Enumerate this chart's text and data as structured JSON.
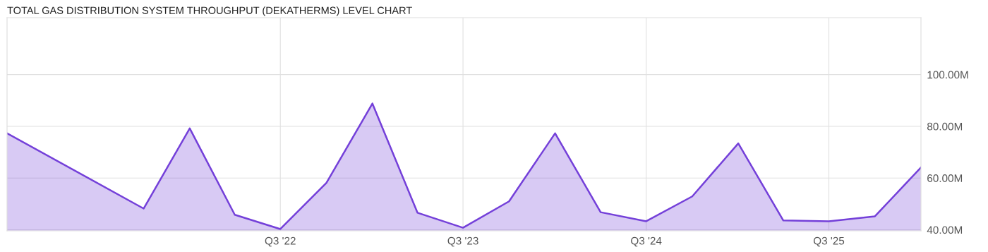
{
  "chart_data": {
    "type": "area",
    "title": "TOTAL GAS DISTRIBUTION SYSTEM THROUGHPUT (DEKATHERMS) LEVEL CHART",
    "x": [
      "2021-01",
      "2021-10",
      "2022-01",
      "2022-04",
      "2022-07",
      "2022-10",
      "2023-01",
      "2023-04",
      "2023-07",
      "2023-10",
      "2024-01",
      "2024-04",
      "2024-07",
      "2024-10",
      "2025-01",
      "2025-04",
      "2025-07",
      "2025-10",
      "2026-01"
    ],
    "series": [
      {
        "color": "#7440d9",
        "values": [
          77.3,
          48.2,
          79.2,
          45.8,
          40.3,
          58.1,
          88.8,
          46.6,
          40.8,
          51.0,
          77.3,
          46.8,
          43.3,
          52.9,
          73.4,
          43.6,
          43.3,
          45.2,
          64.1
        ]
      }
    ],
    "xlim": [
      "2021-01",
      "2026-01"
    ],
    "xticks": [
      {
        "value": "2022-07",
        "label": "Q3 '22"
      },
      {
        "value": "2023-07",
        "label": "Q3 '23"
      },
      {
        "value": "2024-07",
        "label": "Q3 '24"
      },
      {
        "value": "2025-07",
        "label": "Q3 '25"
      }
    ],
    "ylim": [
      39.6,
      122
    ],
    "yticks": [
      {
        "value": 40,
        "label": "40.00M"
      },
      {
        "value": 60,
        "label": "60.00M"
      },
      {
        "value": 80,
        "label": "80.00M"
      },
      {
        "value": 100,
        "label": "100.00M"
      }
    ],
    "grid": true
  }
}
